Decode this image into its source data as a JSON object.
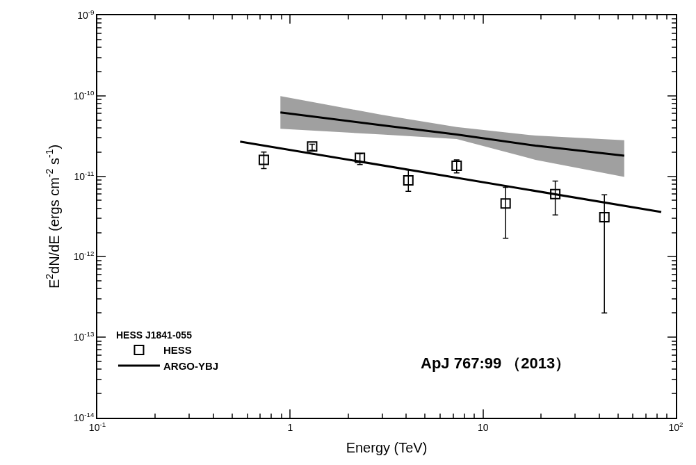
{
  "chart_data": {
    "type": "scatter",
    "xlabel": "Energy (TeV)",
    "ylabel": "E$^{2}$dN/dE (ergs cm$^{-2}$ s$^{-1}$)",
    "legend_title": "HESS J1841-055",
    "log": "xy",
    "legend": "bottom left",
    "xlim": [
      0.1,
      100
    ],
    "xticks": [
      {
        "value": 0.1,
        "label": "10$^{-1}$"
      },
      1,
      10,
      {
        "value": 100,
        "label": "10$^{2}$"
      }
    ],
    "ylim": [
      1e-14,
      1e-09
    ],
    "yticks": [
      {
        "value": 1e-14,
        "label": "10$^{-14}$"
      },
      {
        "value": 1e-13,
        "label": "10$^{-13}$"
      },
      {
        "value": 1e-12,
        "label": "10$^{-12}$"
      },
      {
        "value": 1e-11,
        "label": "10$^{-11}$"
      },
      {
        "value": 1e-10,
        "label": "10$^{-10}$"
      },
      {
        "value": 1e-09,
        "label": "10$^{-9}$"
      }
    ],
    "series": [
      {
        "type": "line",
        "name": "ARGO-YBJ",
        "color": "#000000",
        "x": [
          0.89,
          3,
          7.3,
          18.7,
          54
        ],
        "values": [
          6.2e-11,
          4.3e-11,
          3.3e-11,
          2.4e-11,
          1.8e-11
        ],
        "lower": [
          3.9e-11,
          3.3e-11,
          2.9e-11,
          1.6e-11,
          9.8e-12
        ],
        "upper": [
          9.9e-11,
          5.8e-11,
          4.1e-11,
          3.2e-11,
          2.8e-11
        ]
      },
      {
        "name": "HESS",
        "color": "#000000",
        "marker": "square",
        "x": [
          0.73,
          1.3,
          2.3,
          4.1,
          7.3,
          13.1,
          23.7,
          42.6
        ],
        "values": [
          1.6e-11,
          2.35e-11,
          1.7e-11,
          8.9e-12,
          1.35e-11,
          4.6e-12,
          6e-12,
          3.1e-12
        ],
        "errors": [
          [
            1.25e-11,
            2e-11
          ],
          [
            2.1e-11,
            2.5e-11
          ],
          [
            1.4e-11,
            1.9e-11
          ],
          [
            6.5e-12,
            1.2e-11
          ],
          [
            1.1e-11,
            1.6e-11
          ],
          [
            1.7e-12,
            7.3e-12
          ],
          [
            3.3e-12,
            8.7e-12
          ],
          [
            2e-13,
            5.9e-12
          ]
        ]
      },
      {
        "type": "line",
        "color": "#000000",
        "x": [
          0.55,
          84
        ],
        "values": [
          2.7e-11,
          3.6e-12
        ]
      }
    ],
    "annotations": [
      "ApJ 767:99 （2013）"
    ]
  }
}
